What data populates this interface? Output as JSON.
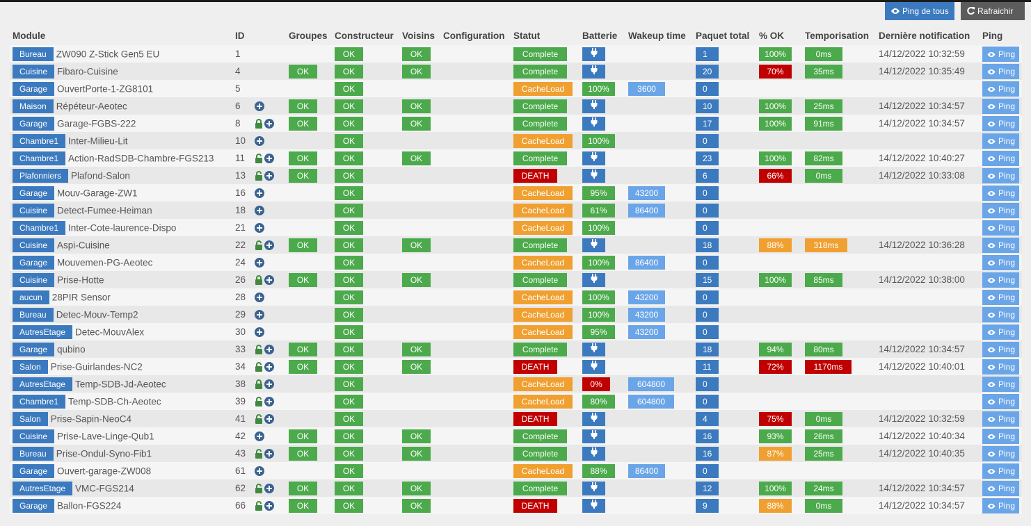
{
  "buttons": {
    "ping_all": "Ping de tous",
    "refresh": "Rafraichir"
  },
  "columns": [
    "Module",
    "ID",
    "Groupes",
    "Constructeur",
    "Voisins",
    "Configuration",
    "Statut",
    "Batterie",
    "Wakeup time",
    "Paquet total",
    "% OK",
    "Temporisation",
    "Dernière notification",
    "Ping"
  ],
  "ping_label": "Ping",
  "colors": {
    "accent": "#3c7abf",
    "ok": "#4caa4c",
    "warn": "#f0a030",
    "danger": "#c00000",
    "light_blue": "#6aa5e8"
  },
  "rows": [
    {
      "room": "Bureau",
      "name": "ZW090 Z-Stick Gen5 EU",
      "id": "1",
      "icons": "",
      "groupes": "",
      "constructeur": "OK",
      "voisins": "OK",
      "statut": "Complete",
      "battery": "plug",
      "wakeup": "",
      "paquet": "1",
      "pct": "100%",
      "tempo": "0ms",
      "notif": "14/12/2022 10:32:59"
    },
    {
      "room": "Cuisine",
      "name": "Fibaro-Cuisine",
      "id": "4",
      "icons": "",
      "groupes": "OK",
      "constructeur": "OK",
      "voisins": "OK",
      "statut": "Complete",
      "battery": "plug",
      "wakeup": "",
      "paquet": "20",
      "pct": "70%",
      "tempo": "35ms",
      "notif": "14/12/2022 10:35:49"
    },
    {
      "room": "Garage",
      "name": "OuvertPorte-1-ZG8101",
      "id": "5",
      "icons": "",
      "groupes": "",
      "constructeur": "OK",
      "voisins": "",
      "statut": "CacheLoad",
      "battery": "100%",
      "wakeup": "3600",
      "paquet": "0",
      "pct": "",
      "tempo": "",
      "notif": ""
    },
    {
      "room": "Maison",
      "name": "Répéteur-Aeotec",
      "id": "6",
      "icons": "plus",
      "groupes": "OK",
      "constructeur": "OK",
      "voisins": "OK",
      "statut": "Complete",
      "battery": "plug",
      "wakeup": "",
      "paquet": "10",
      "pct": "100%",
      "tempo": "25ms",
      "notif": "14/12/2022 10:34:57"
    },
    {
      "room": "Garage",
      "name": "Garage-FGBS-222",
      "id": "8",
      "icons": "lock-plus",
      "groupes": "OK",
      "constructeur": "OK",
      "voisins": "OK",
      "statut": "Complete",
      "battery": "plug",
      "wakeup": "",
      "paquet": "17",
      "pct": "100%",
      "tempo": "91ms",
      "notif": "14/12/2022 10:34:57"
    },
    {
      "room": "Chambre1",
      "name": "Inter-Milieu-Lit",
      "id": "10",
      "icons": "plus",
      "groupes": "",
      "constructeur": "OK",
      "voisins": "",
      "statut": "CacheLoad",
      "battery": "100%",
      "wakeup": "",
      "paquet": "0",
      "pct": "",
      "tempo": "",
      "notif": ""
    },
    {
      "room": "Chambre1",
      "name": "Action-RadSDB-Chambre-FGS213",
      "id": "11",
      "icons": "unlock-plus",
      "groupes": "OK",
      "constructeur": "OK",
      "voisins": "OK",
      "statut": "Complete",
      "battery": "plug",
      "wakeup": "",
      "paquet": "23",
      "pct": "100%",
      "tempo": "82ms",
      "notif": "14/12/2022 10:40:27"
    },
    {
      "room": "Plafonniers",
      "name": "Plafond-Salon",
      "id": "13",
      "icons": "unlock-plus",
      "groupes": "OK",
      "constructeur": "OK",
      "voisins": "",
      "statut": "DEATH",
      "battery": "plug",
      "wakeup": "",
      "paquet": "6",
      "pct": "66%",
      "tempo": "0ms",
      "notif": "14/12/2022 10:33:08"
    },
    {
      "room": "Garage",
      "name": "Mouv-Garage-ZW1",
      "id": "16",
      "icons": "plus",
      "groupes": "",
      "constructeur": "OK",
      "voisins": "",
      "statut": "CacheLoad",
      "battery": "95%",
      "wakeup": "43200",
      "paquet": "0",
      "pct": "",
      "tempo": "",
      "notif": ""
    },
    {
      "room": "Cuisine",
      "name": "Detect-Fumee-Heiman",
      "id": "18",
      "icons": "plus",
      "groupes": "",
      "constructeur": "OK",
      "voisins": "",
      "statut": "CacheLoad",
      "battery": "61%",
      "wakeup": "86400",
      "paquet": "0",
      "pct": "",
      "tempo": "",
      "notif": ""
    },
    {
      "room": "Chambre1",
      "name": "Inter-Cote-laurence-Dispo",
      "id": "21",
      "icons": "plus",
      "groupes": "",
      "constructeur": "OK",
      "voisins": "",
      "statut": "CacheLoad",
      "battery": "100%",
      "wakeup": "",
      "paquet": "0",
      "pct": "",
      "tempo": "",
      "notif": ""
    },
    {
      "room": "Cuisine",
      "name": "Aspi-Cuisine",
      "id": "22",
      "icons": "unlock-plus",
      "groupes": "OK",
      "constructeur": "OK",
      "voisins": "OK",
      "statut": "Complete",
      "battery": "plug",
      "wakeup": "",
      "paquet": "18",
      "pct": "88%",
      "tempo": "318ms",
      "notif": "14/12/2022 10:36:28"
    },
    {
      "room": "Garage",
      "name": "Mouvemen-PG-Aeotec",
      "id": "24",
      "icons": "plus",
      "groupes": "",
      "constructeur": "OK",
      "voisins": "",
      "statut": "CacheLoad",
      "battery": "100%",
      "wakeup": "86400",
      "paquet": "0",
      "pct": "",
      "tempo": "",
      "notif": ""
    },
    {
      "room": "Cuisine",
      "name": "Prise-Hotte",
      "id": "26",
      "icons": "lock-plus",
      "groupes": "OK",
      "constructeur": "OK",
      "voisins": "OK",
      "statut": "Complete",
      "battery": "plug",
      "wakeup": "",
      "paquet": "15",
      "pct": "100%",
      "tempo": "85ms",
      "notif": "14/12/2022 10:38:00"
    },
    {
      "room": "aucun",
      "name": "28PIR Sensor",
      "id": "28",
      "icons": "plus",
      "groupes": "",
      "constructeur": "OK",
      "voisins": "",
      "statut": "CacheLoad",
      "battery": "100%",
      "wakeup": "43200",
      "paquet": "0",
      "pct": "",
      "tempo": "",
      "notif": ""
    },
    {
      "room": "Bureau",
      "name": "Detec-Mouv-Temp2",
      "id": "29",
      "icons": "plus",
      "groupes": "",
      "constructeur": "OK",
      "voisins": "",
      "statut": "CacheLoad",
      "battery": "100%",
      "wakeup": "43200",
      "paquet": "0",
      "pct": "",
      "tempo": "",
      "notif": ""
    },
    {
      "room": "AutresEtage",
      "name": "Detec-MouvAlex",
      "id": "30",
      "icons": "plus",
      "groupes": "",
      "constructeur": "OK",
      "voisins": "",
      "statut": "CacheLoad",
      "battery": "95%",
      "wakeup": "43200",
      "paquet": "0",
      "pct": "",
      "tempo": "",
      "notif": ""
    },
    {
      "room": "Garage",
      "name": "qubino",
      "id": "33",
      "icons": "unlock-plus",
      "groupes": "OK",
      "constructeur": "OK",
      "voisins": "OK",
      "statut": "Complete",
      "battery": "plug",
      "wakeup": "",
      "paquet": "18",
      "pct": "94%",
      "tempo": "80ms",
      "notif": "14/12/2022 10:34:57"
    },
    {
      "room": "Salon",
      "name": "Prise-Guirlandes-NC2",
      "id": "34",
      "icons": "unlock-plus",
      "groupes": "OK",
      "constructeur": "OK",
      "voisins": "OK",
      "statut": "DEATH",
      "battery": "plug",
      "wakeup": "",
      "paquet": "11",
      "pct": "72%",
      "tempo": "1170ms",
      "notif": "14/12/2022 10:40:01"
    },
    {
      "room": "AutresEtage",
      "name": "Temp-SDB-Jd-Aeotec",
      "id": "38",
      "icons": "lock-plus",
      "groupes": "",
      "constructeur": "OK",
      "voisins": "",
      "statut": "CacheLoad",
      "battery": "0%",
      "wakeup": "604800",
      "paquet": "0",
      "pct": "",
      "tempo": "",
      "notif": ""
    },
    {
      "room": "Chambre1",
      "name": "Temp-SDB-Ch-Aeotec",
      "id": "39",
      "icons": "unlock-plus",
      "groupes": "",
      "constructeur": "OK",
      "voisins": "",
      "statut": "CacheLoad",
      "battery": "80%",
      "wakeup": "604800",
      "paquet": "0",
      "pct": "",
      "tempo": "",
      "notif": ""
    },
    {
      "room": "Salon",
      "name": "Prise-Sapin-NeoC4",
      "id": "41",
      "icons": "unlock-plus",
      "groupes": "",
      "constructeur": "OK",
      "voisins": "",
      "statut": "DEATH",
      "battery": "plug",
      "wakeup": "",
      "paquet": "4",
      "pct": "75%",
      "tempo": "0ms",
      "notif": "14/12/2022 10:32:59"
    },
    {
      "room": "Cuisine",
      "name": "Prise-Lave-Linge-Qub1",
      "id": "42",
      "icons": "plus",
      "groupes": "OK",
      "constructeur": "OK",
      "voisins": "OK",
      "statut": "Complete",
      "battery": "plug",
      "wakeup": "",
      "paquet": "16",
      "pct": "93%",
      "tempo": "26ms",
      "notif": "14/12/2022 10:40:34"
    },
    {
      "room": "Bureau",
      "name": "Prise-Ondul-Syno-Fib1",
      "id": "43",
      "icons": "unlock-plus",
      "groupes": "OK",
      "constructeur": "OK",
      "voisins": "OK",
      "statut": "Complete",
      "battery": "plug",
      "wakeup": "",
      "paquet": "16",
      "pct": "87%",
      "tempo": "25ms",
      "notif": "14/12/2022 10:40:35"
    },
    {
      "room": "Garage",
      "name": "Ouvert-garage-ZW008",
      "id": "61",
      "icons": "plus",
      "groupes": "",
      "constructeur": "OK",
      "voisins": "",
      "statut": "CacheLoad",
      "battery": "88%",
      "wakeup": "86400",
      "paquet": "0",
      "pct": "",
      "tempo": "",
      "notif": ""
    },
    {
      "room": "AutresEtage",
      "name": "VMC-FGS214",
      "id": "62",
      "icons": "unlock-plus",
      "groupes": "OK",
      "constructeur": "OK",
      "voisins": "OK",
      "statut": "Complete",
      "battery": "plug",
      "wakeup": "",
      "paquet": "12",
      "pct": "100%",
      "tempo": "24ms",
      "notif": "14/12/2022 10:34:57"
    },
    {
      "room": "Garage",
      "name": "Ballon-FGS224",
      "id": "66",
      "icons": "unlock-plus",
      "groupes": "OK",
      "constructeur": "OK",
      "voisins": "OK",
      "statut": "DEATH",
      "battery": "plug",
      "wakeup": "",
      "paquet": "9",
      "pct": "88%",
      "tempo": "0ms",
      "notif": "14/12/2022 10:34:57"
    }
  ]
}
